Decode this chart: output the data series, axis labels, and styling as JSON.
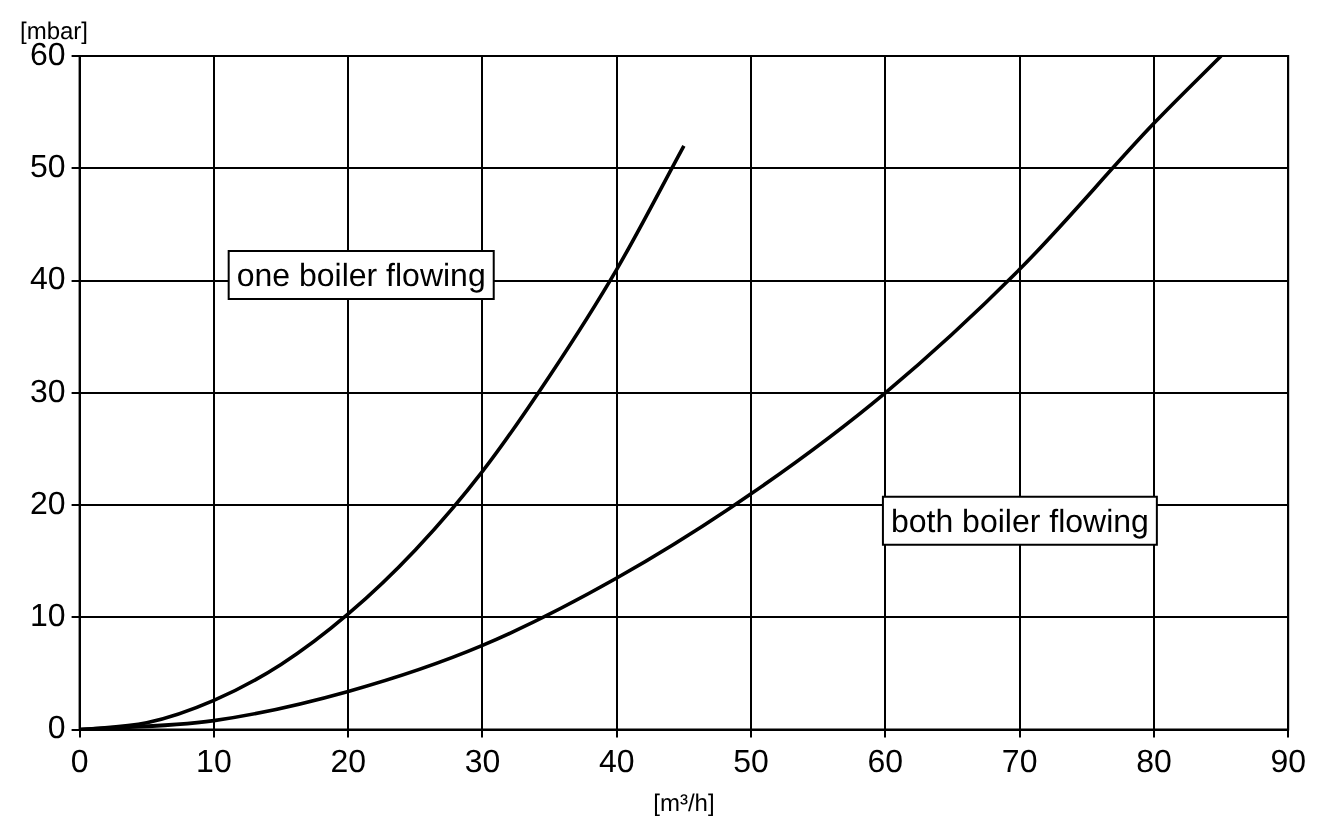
{
  "chart_data": {
    "type": "line",
    "xlabel": "[m³/h]",
    "ylabel": "[mbar]",
    "xlim": [
      0,
      90
    ],
    "xticks": [
      0,
      10,
      20,
      30,
      40,
      50,
      60,
      70,
      80,
      90
    ],
    "ylim": [
      0,
      60
    ],
    "yticks": [
      0,
      10,
      20,
      30,
      40,
      50,
      60
    ],
    "grid": true,
    "legend": false,
    "series": [
      {
        "color": "#000000",
        "x": [
          0,
          5,
          10,
          15,
          20,
          25,
          30,
          35,
          40,
          45
        ],
        "values": [
          0,
          0.6,
          2.6,
          5.8,
          10.3,
          16,
          23,
          31.5,
          41,
          52
        ]
      },
      {
        "color": "#000000",
        "x": [
          0,
          10,
          20,
          30,
          40,
          50,
          60,
          70,
          80,
          85
        ],
        "values": [
          0,
          0.8,
          3.4,
          7.5,
          13.5,
          21,
          30,
          41,
          54,
          60
        ]
      }
    ],
    "annotations": [
      "one boiler flowing",
      "both boiler flowing"
    ]
  }
}
